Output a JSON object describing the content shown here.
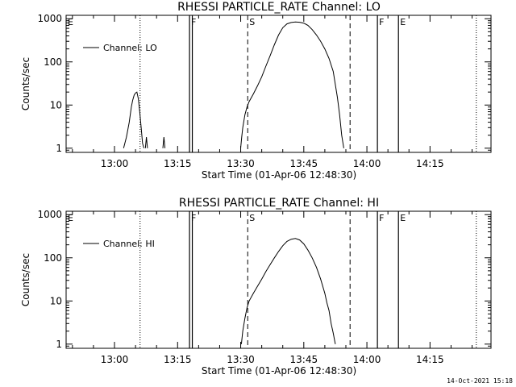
{
  "footer_timestamp": "14-Oct-2021 15:18",
  "chart_data": [
    {
      "type": "line",
      "title": "RHESSI PARTICLE_RATE Channel: LO",
      "ylabel": "Counts/sec",
      "xlabel": "Start Time (01-Apr-06 12:48:30)",
      "legend": {
        "position": "top-left",
        "entries": [
          "Channel: LO"
        ]
      },
      "x_ticks": [
        "13:00",
        "13:15",
        "13:30",
        "13:45",
        "14:00",
        "14:15"
      ],
      "y_ticks": [
        "1",
        "10",
        "100",
        "1000"
      ],
      "y_scale": "log",
      "xlim": [
        "12:48:30",
        "14:29:30"
      ],
      "ylim": [
        0.8,
        1200
      ],
      "markers": {
        "dotted": [
          "13:06:05",
          "14:26:00"
        ],
        "solid": [
          "13:17:50",
          "13:18:30",
          "14:02:30",
          "14:07:30"
        ],
        "dashed": [
          "13:31:40",
          "13:56:00"
        ],
        "letters": [
          {
            "text": "E",
            "time": "12:48:30"
          },
          {
            "text": "F",
            "time": "13:17:50"
          },
          {
            "text": "S",
            "time": "13:31:40"
          },
          {
            "text": "F",
            "time": "14:02:30"
          },
          {
            "text": "E",
            "time": "14:07:30"
          }
        ]
      },
      "series": [
        {
          "name": "Channel: LO",
          "points": [
            [
              "13:02:10",
              1
            ],
            [
              "13:02:50",
              1.8
            ],
            [
              "13:03:30",
              4
            ],
            [
              "13:04:00",
              9
            ],
            [
              "13:04:20",
              13
            ],
            [
              "13:04:40",
              17
            ],
            [
              "13:05:00",
              19
            ],
            [
              "13:05:20",
              20
            ],
            [
              "13:05:40",
              14
            ],
            [
              "13:06:00",
              7
            ],
            [
              "13:06:20",
              3
            ],
            [
              "13:06:40",
              1.3
            ],
            [
              "13:07:00",
              1
            ],
            null,
            [
              "13:07:20",
              1
            ],
            [
              "13:07:35",
              1.8
            ],
            [
              "13:07:50",
              1
            ],
            null,
            [
              "13:11:30",
              1
            ],
            [
              "13:11:45",
              1.8
            ],
            [
              "13:12:00",
              1
            ],
            null,
            [
              "13:30:00",
              1
            ],
            [
              "13:30:15",
              1.8
            ],
            [
              "13:30:30",
              3
            ],
            [
              "13:31:00",
              6
            ],
            [
              "13:31:30",
              9
            ],
            [
              "13:32:00",
              12
            ],
            [
              "13:33:00",
              18
            ],
            [
              "13:34:00",
              28
            ],
            [
              "13:35:00",
              45
            ],
            [
              "13:36:00",
              80
            ],
            [
              "13:37:00",
              140
            ],
            [
              "13:38:00",
              250
            ],
            [
              "13:39:00",
              420
            ],
            [
              "13:40:00",
              620
            ],
            [
              "13:41:00",
              760
            ],
            [
              "13:42:00",
              820
            ],
            [
              "13:43:00",
              840
            ],
            [
              "13:44:00",
              830
            ],
            [
              "13:45:00",
              790
            ],
            [
              "13:46:00",
              700
            ],
            [
              "13:47:00",
              560
            ],
            [
              "13:48:00",
              420
            ],
            [
              "13:49:00",
              300
            ],
            [
              "13:50:00",
              200
            ],
            [
              "13:51:00",
              120
            ],
            [
              "13:52:00",
              60
            ],
            [
              "13:52:30",
              30
            ],
            [
              "13:53:00",
              15
            ],
            [
              "13:53:30",
              6
            ],
            [
              "13:54:00",
              2
            ],
            [
              "13:54:30",
              1
            ]
          ]
        }
      ]
    },
    {
      "type": "line",
      "title": "RHESSI PARTICLE_RATE Channel: HI",
      "ylabel": "Counts/sec",
      "xlabel": "Start Time (01-Apr-06 12:48:30)",
      "legend": {
        "position": "top-left",
        "entries": [
          "Channel: HI"
        ]
      },
      "x_ticks": [
        "13:00",
        "13:15",
        "13:30",
        "13:45",
        "14:00",
        "14:15"
      ],
      "y_ticks": [
        "1",
        "10",
        "100",
        "1000"
      ],
      "y_scale": "log",
      "xlim": [
        "12:48:30",
        "14:29:30"
      ],
      "ylim": [
        0.8,
        1200
      ],
      "markers": {
        "dotted": [
          "13:06:05",
          "14:26:00"
        ],
        "solid": [
          "13:17:50",
          "13:18:30",
          "14:02:30",
          "14:07:30"
        ],
        "dashed": [
          "13:31:40",
          "13:56:00"
        ],
        "letters": [
          {
            "text": "E",
            "time": "12:48:30"
          },
          {
            "text": "F",
            "time": "13:17:50"
          },
          {
            "text": "S",
            "time": "13:31:40"
          },
          {
            "text": "F",
            "time": "14:02:30"
          },
          {
            "text": "E",
            "time": "14:07:30"
          }
        ]
      },
      "series": [
        {
          "name": "Channel: HI",
          "points": [
            [
              "13:30:10",
              1
            ],
            [
              "13:30:30",
              2
            ],
            [
              "13:31:00",
              4
            ],
            [
              "13:31:30",
              7
            ],
            [
              "13:32:00",
              10
            ],
            [
              "13:33:00",
              15
            ],
            [
              "13:34:00",
              22
            ],
            [
              "13:35:00",
              32
            ],
            [
              "13:36:00",
              48
            ],
            [
              "13:37:00",
              70
            ],
            [
              "13:38:00",
              100
            ],
            [
              "13:39:00",
              140
            ],
            [
              "13:40:00",
              190
            ],
            [
              "13:41:00",
              240
            ],
            [
              "13:42:00",
              270
            ],
            [
              "13:43:00",
              280
            ],
            [
              "13:44:00",
              260
            ],
            [
              "13:45:00",
              210
            ],
            [
              "13:46:00",
              150
            ],
            [
              "13:47:00",
              100
            ],
            [
              "13:48:00",
              60
            ],
            [
              "13:49:00",
              32
            ],
            [
              "13:50:00",
              15
            ],
            [
              "13:50:30",
              9
            ],
            [
              "13:51:00",
              6
            ],
            [
              "13:51:30",
              3
            ],
            [
              "13:52:00",
              1.8
            ],
            [
              "13:52:30",
              1
            ]
          ]
        }
      ]
    }
  ]
}
